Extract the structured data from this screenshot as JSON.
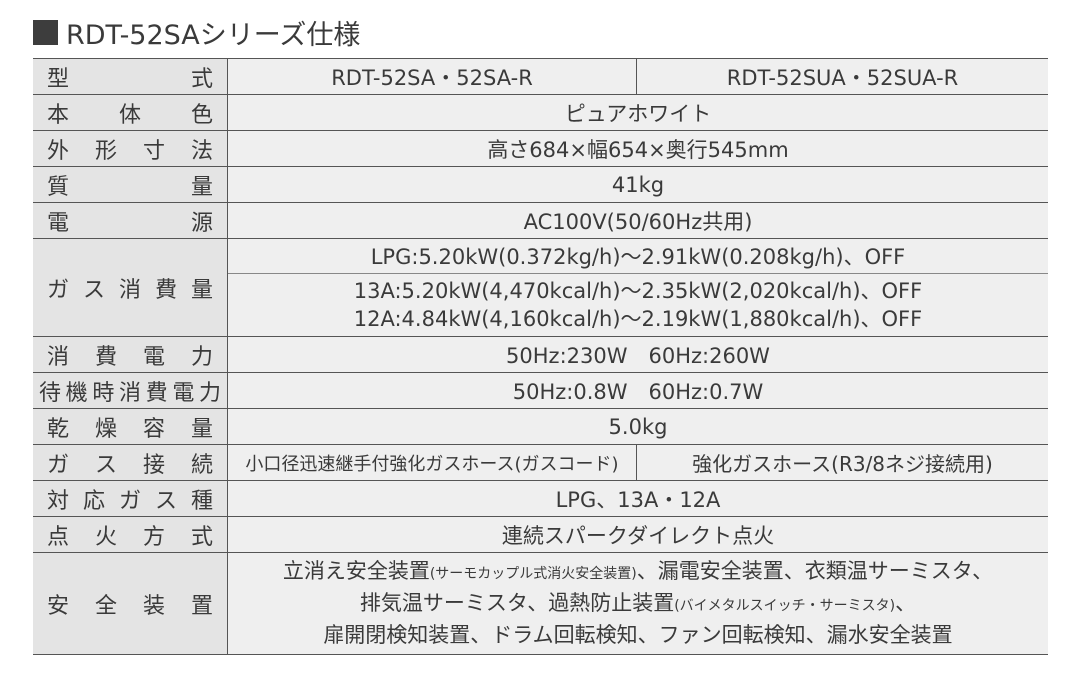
{
  "title": "RDT-52SAシリーズ仕様",
  "rows": {
    "model": {
      "label": "型式",
      "col1": "RDT-52SA・52SA-R",
      "col2": "RDT-52SUA・52SUA-R"
    },
    "color": {
      "label": "本体色",
      "value": "ピュアホワイト"
    },
    "size": {
      "label": "外形寸法",
      "value": "高さ684×幅654×奥行545mm"
    },
    "weight": {
      "label": "質量",
      "value": "41kg"
    },
    "power": {
      "label": "電源",
      "value": "AC100V(50/60Hz共用)"
    },
    "gas_consumption": {
      "label": "ガス消費量",
      "lpg": "LPG:5.20kW(0.372kg/h)～2.91kW(0.208kg/h)、OFF",
      "a13": "13A:5.20kW(4,470kcal/h)～2.35kW(2,020kcal/h)、OFF",
      "a12": "12A:4.84kW(4,160kcal/h)～2.19kW(1,880kcal/h)、OFF"
    },
    "power_consumption": {
      "label": "消費電力",
      "value": "50Hz:230W　60Hz:260W"
    },
    "standby": {
      "label": "待機時消費電力",
      "value": "50Hz:0.8W　60Hz:0.7W"
    },
    "capacity": {
      "label": "乾燥容量",
      "value": "5.0kg"
    },
    "gas_connection": {
      "label": "ガス接続",
      "col1": "小口径迅速継手付強化ガスホース(ガスコード)",
      "col2": "強化ガスホース(R3/8ネジ接続用)"
    },
    "gas_type": {
      "label": "対応ガス種",
      "value": "LPG、13A・12A"
    },
    "ignition": {
      "label": "点火方式",
      "value": "連続スパークダイレクト点火"
    },
    "safety": {
      "label": "安全装置",
      "line1a": "立消え安全装置",
      "line1b": "(サーモカップル式消火安全装置)",
      "line1c": "、漏電安全装置、衣類温サーミスタ、",
      "line2a": "排気温サーミスタ、過熱防止装置",
      "line2b": "(バイメタルスイッチ・サーミスタ)",
      "line2c": "、",
      "line3": "扉開閉検知装置、ドラム回転検知、ファン回転検知、漏水安全装置"
    }
  }
}
